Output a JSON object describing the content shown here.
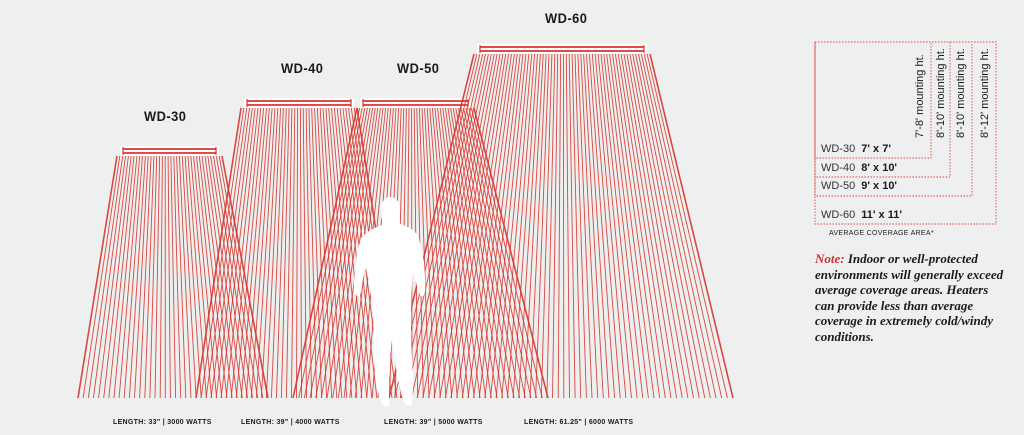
{
  "colors": {
    "ray": "#d8352f",
    "guide": "#e0453f",
    "figure": "#ffffff",
    "background": "#eef0ef"
  },
  "heaters": [
    {
      "model": "WD-30",
      "length": "LENGTH: 33\" | 3000 WATTS"
    },
    {
      "model": "WD-40",
      "length": "LENGTH: 39\" | 4000 WATTS"
    },
    {
      "model": "WD-50",
      "length": "LENGTH: 39\" | 5000 WATTS"
    },
    {
      "model": "WD-60",
      "length": "LENGTH: 61.25\" | 6000 WATTS"
    }
  ],
  "legend": {
    "rows": [
      {
        "model": "WD-30",
        "area": "7' x 7'"
      },
      {
        "model": "WD-40",
        "area": "8' x 10'"
      },
      {
        "model": "WD-50",
        "area": "9' x 10'"
      },
      {
        "model": "WD-60",
        "area": "11' x 11'"
      }
    ],
    "mounting": [
      "7'-8' mounting ht.",
      "8'-10' mounting ht.",
      "8'-10' mounting ht.",
      "8'-12' mounting ht."
    ],
    "caption": "AVERAGE COVERAGE AREA*"
  },
  "note": {
    "lead": "Note:",
    "text": "Indoor or well-protected environments will generally exceed average coverage areas. Heaters can provide less than average coverage in extremely cold/windy conditions."
  },
  "figure_icon": "person-silhouette-icon"
}
